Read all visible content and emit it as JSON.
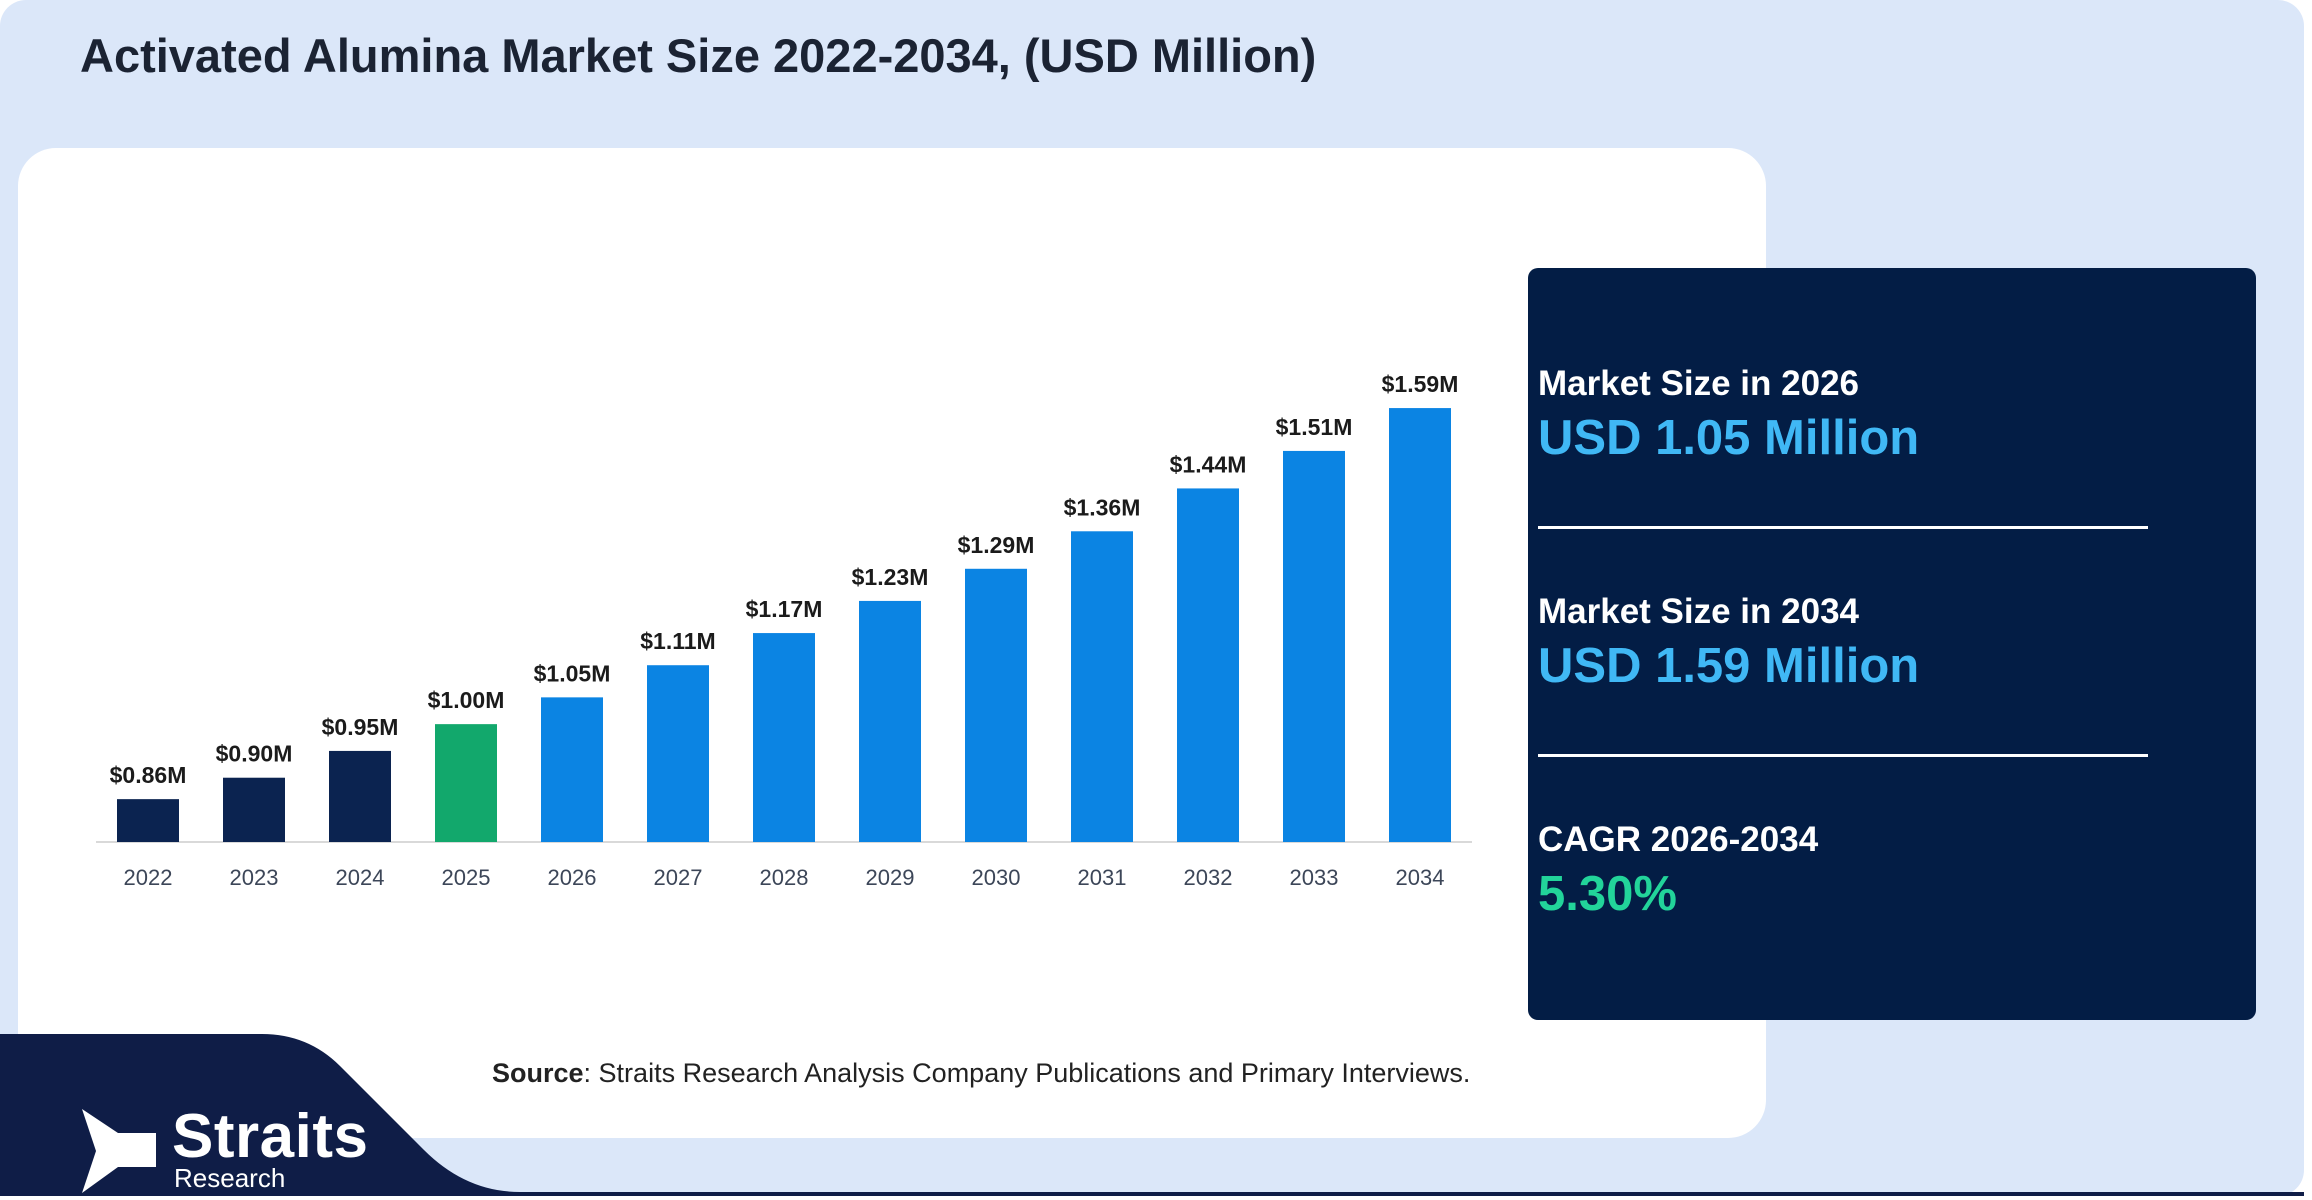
{
  "title": "Activated Alumina Market Size 2022-2034, (USD Million)",
  "chart_data": {
    "type": "bar",
    "categories": [
      "2022",
      "2023",
      "2024",
      "2025",
      "2026",
      "2027",
      "2028",
      "2029",
      "2030",
      "2031",
      "2032",
      "2033",
      "2034"
    ],
    "values": [
      0.86,
      0.9,
      0.95,
      1.0,
      1.05,
      1.11,
      1.17,
      1.23,
      1.29,
      1.36,
      1.44,
      1.51,
      1.59
    ],
    "data_labels": [
      "$0.86M",
      "$0.90M",
      "$0.95M",
      "$1.00M",
      "$1.05M",
      "$1.11M",
      "$1.17M",
      "$1.23M",
      "$1.29M",
      "$1.36M",
      "$1.44M",
      "$1.51M",
      "$1.59M"
    ],
    "bar_colors": [
      "#0b2350",
      "#0b2350",
      "#0b2350",
      "#12a86c",
      "#0b84e3",
      "#0b84e3",
      "#0b84e3",
      "#0b84e3",
      "#0b84e3",
      "#0b84e3",
      "#0b84e3",
      "#0b84e3",
      "#0b84e3"
    ],
    "ylim": [
      0.78,
      1.62
    ],
    "grid": false,
    "legend": "none"
  },
  "stats": [
    {
      "label": "Market Size in 2026",
      "value": "USD 1.05 Million"
    },
    {
      "label": "Market Size in 2034",
      "value": "USD 1.59 Million"
    },
    {
      "label": "CAGR 2026-2034",
      "value": "5.30%"
    }
  ],
  "source": {
    "prefix": "Source",
    "text": ": Straits Research Analysis Company Publications and Primary Interviews."
  },
  "logo": {
    "name": "Straits",
    "sub": "Research"
  },
  "colors": {
    "background": "#dbe7f9",
    "panel": "#031d45",
    "value_blue": "#40b8f5",
    "value_green": "#22d49a",
    "footer_navy": "#0f1d47"
  }
}
